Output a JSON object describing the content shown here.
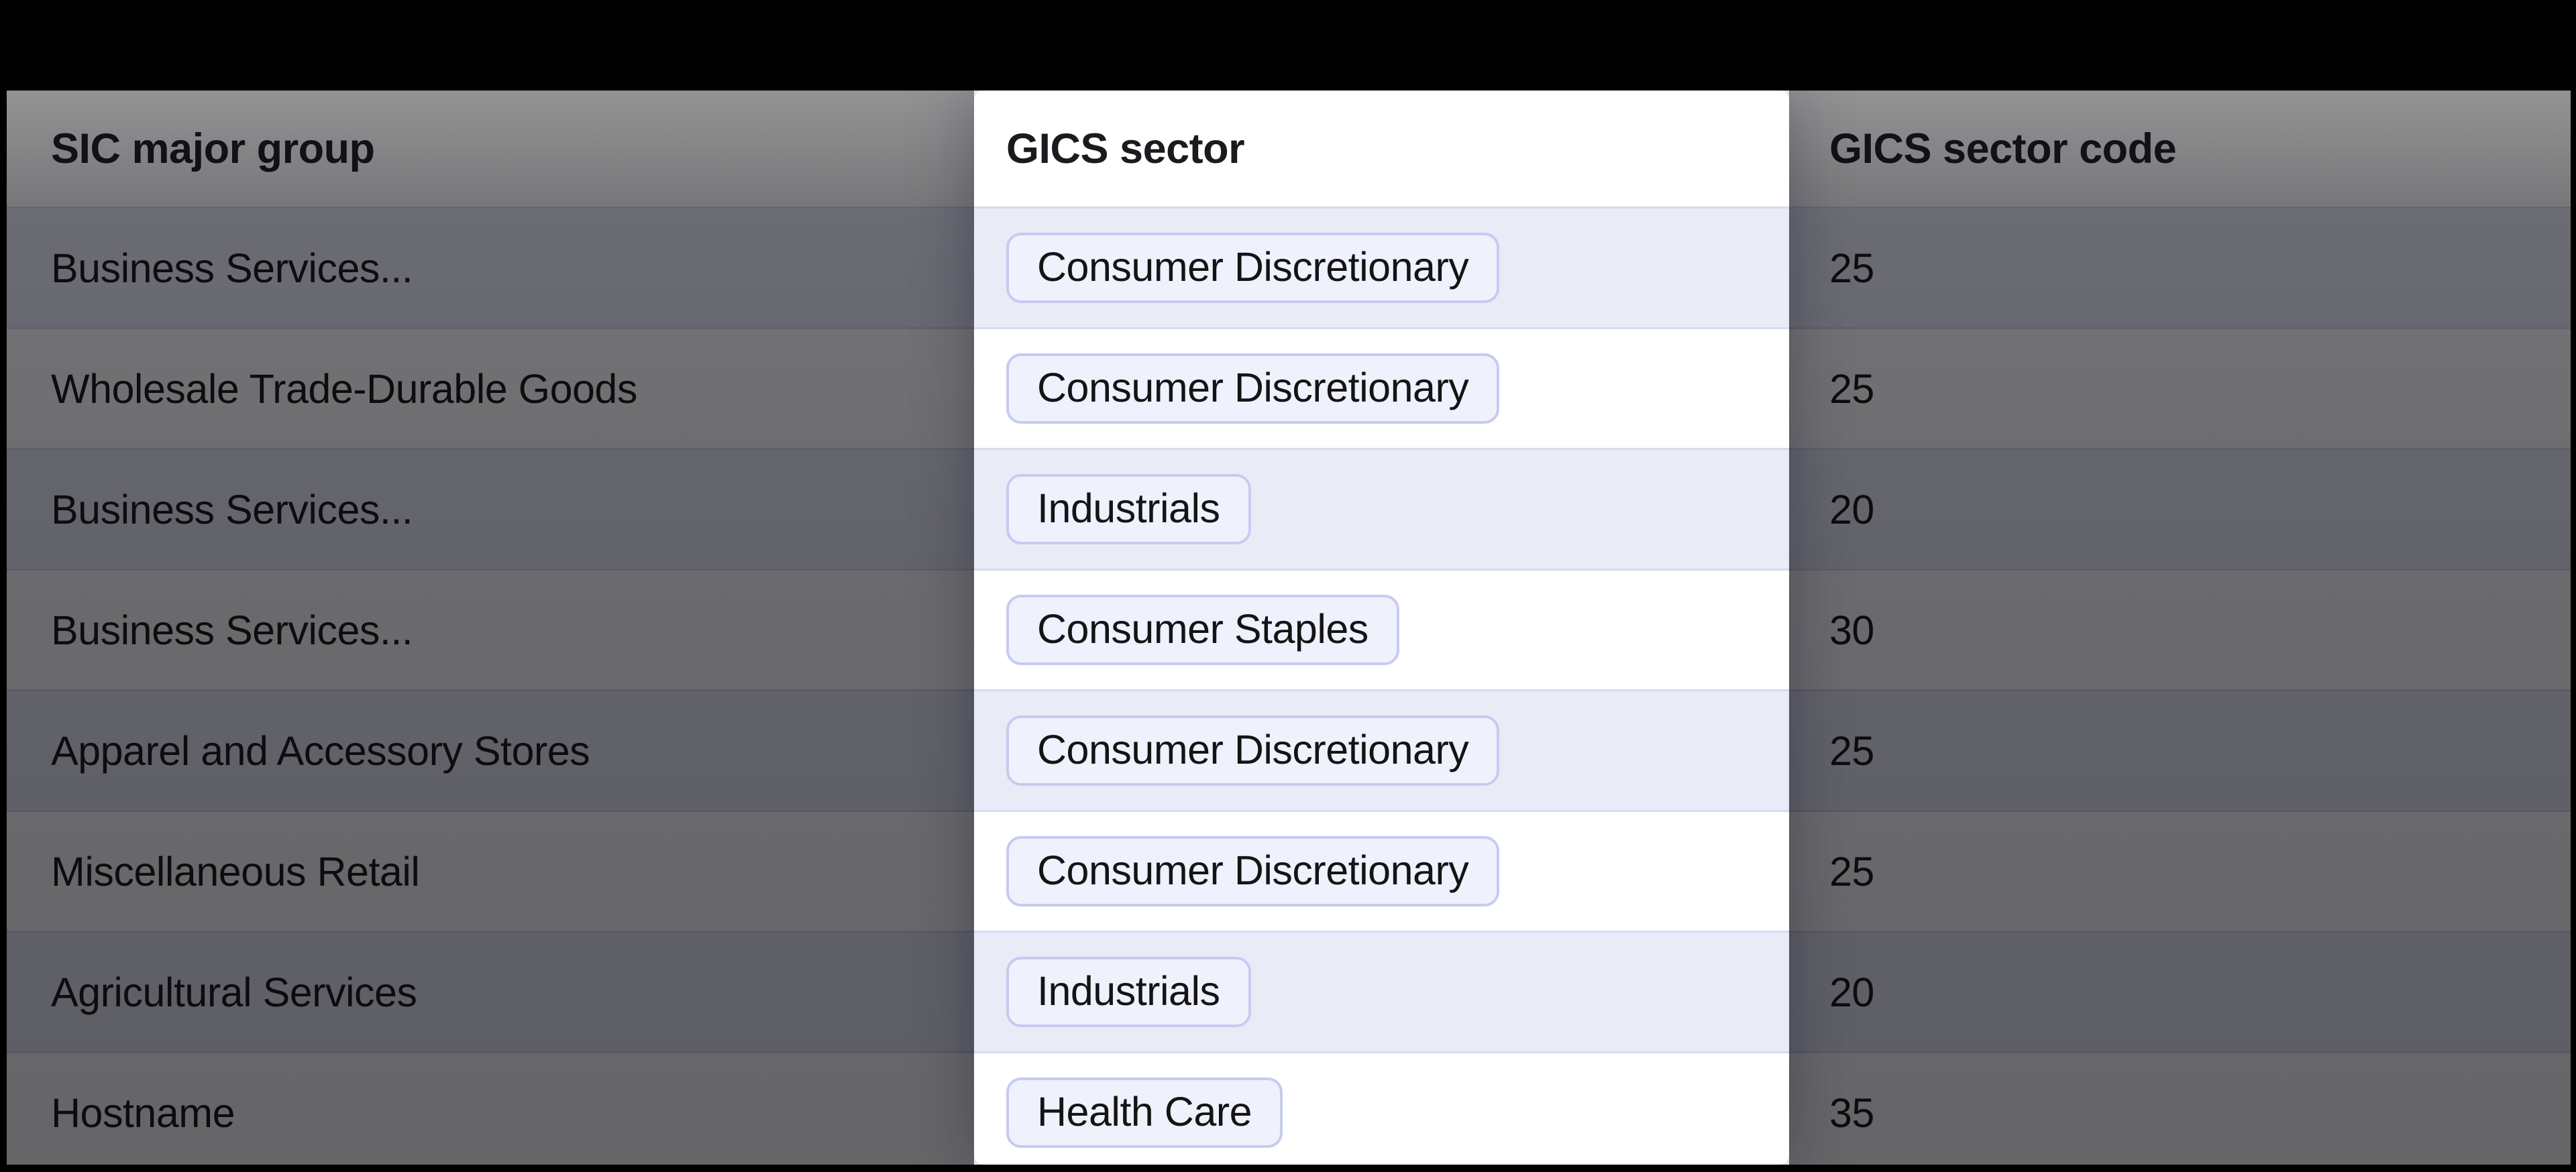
{
  "table": {
    "columns": [
      {
        "label": "SIC major group",
        "state": "dimmed"
      },
      {
        "label": "GICS sector",
        "state": "highlighted"
      },
      {
        "label": "GICS sector code",
        "state": "dimmed"
      }
    ],
    "rows": [
      {
        "sic": "Business Services...",
        "gics": "Consumer Discretionary",
        "code": "25"
      },
      {
        "sic": "Wholesale Trade-Durable Goods",
        "gics": "Consumer Discretionary",
        "code": "25"
      },
      {
        "sic": "Business Services...",
        "gics": "Industrials",
        "code": "20"
      },
      {
        "sic": "Business Services...",
        "gics": "Consumer Staples",
        "code": "30"
      },
      {
        "sic": "Apparel and Accessory Stores",
        "gics": "Consumer Discretionary",
        "code": "25"
      },
      {
        "sic": "Miscellaneous Retail",
        "gics": "Consumer Discretionary",
        "code": "25"
      },
      {
        "sic": "Agricultural Services",
        "gics": "Industrials",
        "code": "20"
      },
      {
        "sic": "Hostname",
        "gics": "Health Care",
        "code": "35"
      }
    ]
  },
  "colors": {
    "letterbox": "#000000",
    "row_base": "#ffffff",
    "row_alt": "#e9ebf7",
    "separator": "#d8daf0",
    "pill_bg": "#eff1fd",
    "pill_border": "#c7cbf1",
    "text": "#141414"
  }
}
